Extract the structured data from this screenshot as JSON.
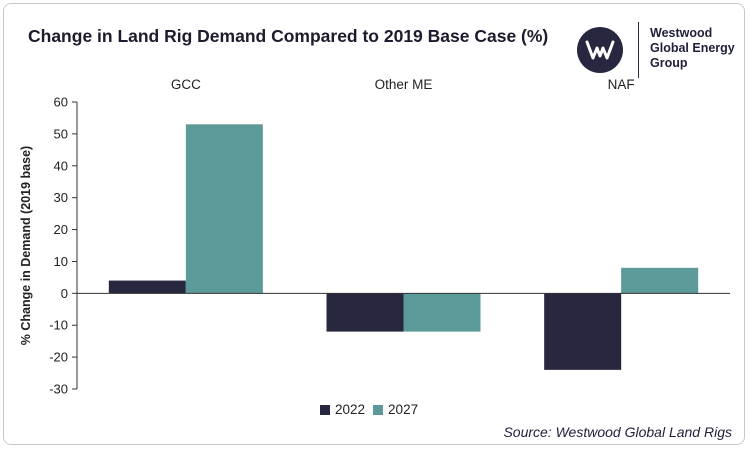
{
  "title": "Change in Land Rig Demand Compared to 2019 Base Case (%)",
  "logo": {
    "line1": "Westwood",
    "line2": "Global Energy",
    "line3": "Group",
    "icon": "westwood-w-logo-icon"
  },
  "source": "Source: Westwood Global Land Rigs",
  "colors": {
    "series_2022": "#272740",
    "series_2027": "#5b9a99",
    "axis": "#333333",
    "text": "#222222"
  },
  "chart_data": {
    "type": "bar",
    "title": "Change in Land Rig Demand Compared to 2019 Base Case (%)",
    "categories": [
      "GCC",
      "Other ME",
      "NAF"
    ],
    "category_label_position": "top",
    "series": [
      {
        "name": "2022",
        "values": [
          4,
          -12,
          -24
        ]
      },
      {
        "name": "2027",
        "values": [
          53,
          -12,
          8
        ]
      }
    ],
    "xlabel": "",
    "ylabel": "% Change in Demand (2019 base)",
    "ylim": [
      -30,
      60
    ],
    "yticks": [
      60,
      50,
      40,
      30,
      20,
      10,
      0,
      -10,
      -20,
      -30
    ],
    "grid": false,
    "legend": "bottom-center"
  }
}
